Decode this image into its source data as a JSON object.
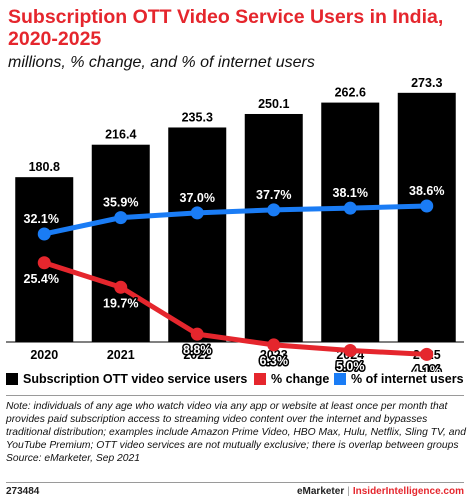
{
  "header": {
    "title": "Subscription OTT Video Service Users in India, 2020-2025",
    "subtitle": "millions, % change, and % of internet users"
  },
  "chart_data": {
    "type": "bar",
    "categories": [
      "2020",
      "2021",
      "2022",
      "2023",
      "2024",
      "2025"
    ],
    "series": [
      {
        "name": "Subscription OTT video service users",
        "type": "bar",
        "color": "#000000",
        "values": [
          180.8,
          216.4,
          235.3,
          250.1,
          262.6,
          273.3
        ],
        "labels": [
          "180.8",
          "216.4",
          "235.3",
          "250.1",
          "262.6",
          "273.3"
        ]
      },
      {
        "name": "% change",
        "type": "line",
        "color": "#e5262d",
        "values": [
          25.4,
          19.7,
          8.8,
          6.3,
          5.0,
          4.1
        ],
        "labels": [
          "25.4%",
          "19.7%",
          "8.8%",
          "6.3%",
          "5.0%",
          "4.1%"
        ]
      },
      {
        "name": "% of internet users",
        "type": "line",
        "color": "#1a7cf5",
        "values": [
          32.1,
          35.9,
          37.0,
          37.7,
          38.1,
          38.6
        ],
        "labels": [
          "32.1%",
          "35.9%",
          "37.0%",
          "37.7%",
          "38.1%",
          "38.6%"
        ]
      }
    ],
    "legend_position": "bottom"
  },
  "note": "Note: individuals of any age who watch video via any app or website at least once per month that provides paid subscription access to streaming video content over the internet and bypasses traditional distribution; examples include Amazon Prime Video, HBO Max, Hulu, Netflix, Sling TV, and YouTube Premium; OTT video services are not mutually exclusive; there is overlap between groups",
  "source": "Source: eMarketer, Sep 2021",
  "footer": {
    "chart_id": "273484",
    "brand": "eMarketer",
    "separator": "|",
    "site": "InsiderIntelligence.com"
  }
}
